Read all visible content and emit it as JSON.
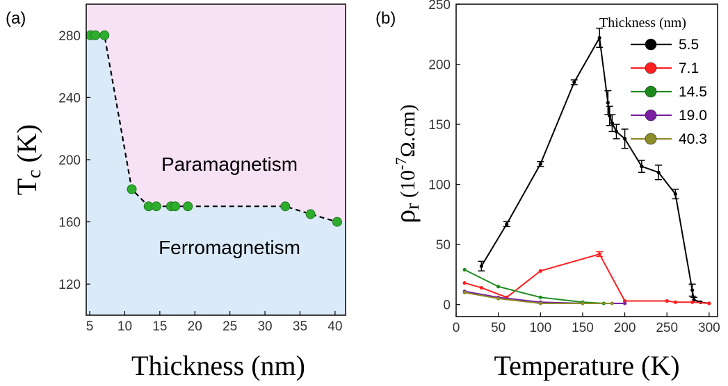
{
  "panel_a_label": "(a)",
  "panel_b_label": "(b)",
  "chart_data": [
    {
      "type": "scatter",
      "panel": "(a)",
      "xlabel": "Thickness (nm)",
      "ylabel_main": "T",
      "ylabel_sub": "c",
      "ylabel_unit": " (K)",
      "xlim": [
        4.5,
        41.5
      ],
      "ylim": [
        100,
        300
      ],
      "xticks": [
        5,
        10,
        15,
        20,
        25,
        30,
        35,
        40
      ],
      "yticks": [
        120,
        160,
        200,
        240,
        280
      ],
      "region_labels": {
        "upper": "Paramagnetism",
        "lower": "Ferromagnetism"
      },
      "colors": {
        "upper_region": "#f7e1f5",
        "lower_region": "#dbeaf9",
        "marker": "#2eac2e",
        "line": "#000000"
      },
      "x": [
        5.1,
        5.8,
        7.1,
        11.0,
        13.4,
        14.5,
        16.6,
        17.2,
        19.0,
        32.9,
        36.5,
        40.3
      ],
      "y": [
        280,
        280,
        280,
        181,
        170,
        170,
        170,
        170,
        170,
        170,
        165,
        160
      ]
    },
    {
      "type": "line",
      "panel": "(b)",
      "xlabel": "Temperature (K)",
      "ylabel_main": "ρ",
      "ylabel_sub": "r",
      "ylabel_unit": " (10",
      "ylabel_exp": "-7",
      "ylabel_tail": "Ω.cm)",
      "xlim": [
        0,
        310
      ],
      "ylim": [
        -10,
        250
      ],
      "xticks": [
        0,
        50,
        100,
        150,
        200,
        250,
        300
      ],
      "yticks": [
        0,
        50,
        100,
        150,
        200,
        250
      ],
      "legend_title": "Thickness (nm)",
      "legend_position": "top-right",
      "series": [
        {
          "name": "5.5",
          "color": "#000000",
          "x": [
            30,
            60,
            100,
            140,
            170,
            180,
            182,
            185,
            190,
            200,
            220,
            240,
            260,
            280,
            282,
            290,
            300
          ],
          "y": [
            32,
            67,
            117,
            185,
            222,
            168,
            157,
            151,
            144,
            138,
            115,
            110,
            92,
            12,
            4,
            2,
            1
          ],
          "err": [
            4,
            2,
            2,
            2,
            8,
            10,
            8,
            7,
            6,
            8,
            5,
            6,
            4,
            5,
            2,
            1,
            1
          ]
        },
        {
          "name": "7.1",
          "color": "#ff2020",
          "x": [
            10,
            30,
            60,
            100,
            170,
            200,
            250,
            260,
            280,
            300
          ],
          "y": [
            18,
            14,
            6,
            28,
            42,
            3,
            3,
            2,
            2,
            1
          ],
          "err": [
            1,
            1,
            1,
            1,
            2,
            1,
            1,
            1,
            1,
            1
          ]
        },
        {
          "name": "14.5",
          "color": "#1d8a1d",
          "x": [
            10,
            50,
            100,
            150,
            175
          ],
          "y": [
            29,
            15,
            6,
            2,
            1
          ],
          "err": [
            1,
            1,
            1,
            1,
            1
          ]
        },
        {
          "name": "19.0",
          "color": "#7a1fa2",
          "x": [
            10,
            50,
            100,
            150,
            200
          ],
          "y": [
            11,
            6,
            2,
            1,
            1
          ],
          "err": [
            1,
            1,
            1,
            1,
            1
          ]
        },
        {
          "name": "40.3",
          "color": "#8c8c28",
          "x": [
            10,
            50,
            100,
            150,
            185
          ],
          "y": [
            10,
            5,
            1,
            1,
            1
          ],
          "err": [
            1,
            1,
            1,
            1,
            1
          ]
        }
      ]
    }
  ]
}
